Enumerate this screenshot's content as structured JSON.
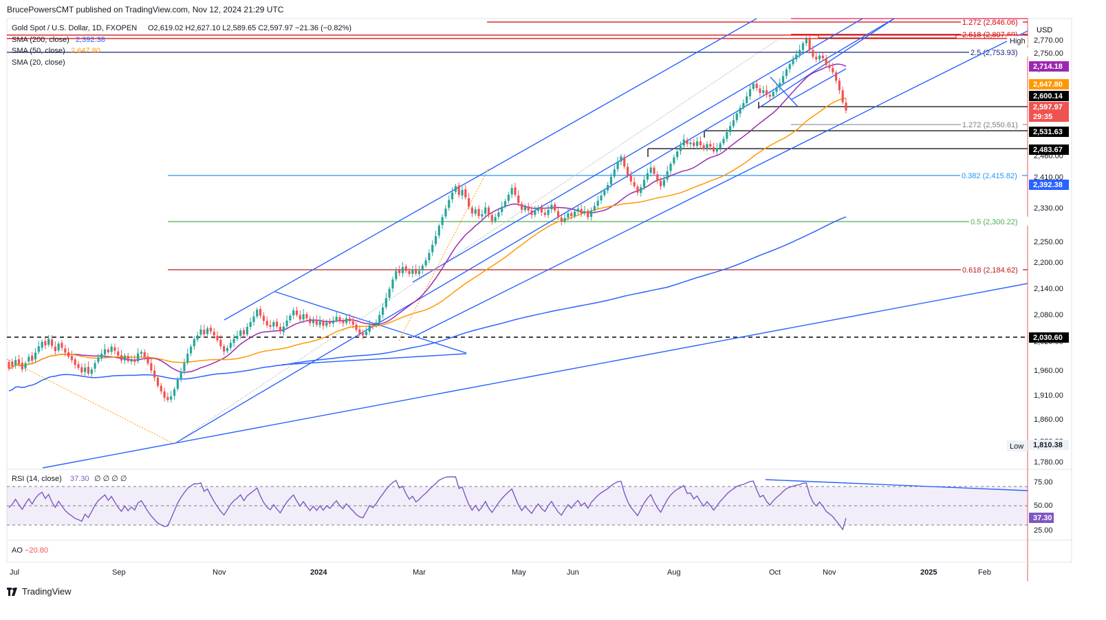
{
  "publisher_line": "BrucePowersCMT published on TradingView.com, Nov 12, 2024 21:29 UTC",
  "footer_brand": "TradingView",
  "legend": {
    "symbol": "Gold Spot / U.S. Dollar, 1D, FXOPEN",
    "ohlc": "O2,619.02 H2,627.10 L2,589.65 C2,597.97 −21.36 (−0.82%)",
    "sma200_label": "SMA (200, close)",
    "sma200_value": "2,392.38",
    "sma50_label": "SMA (50, close)",
    "sma50_value": "2,647.80",
    "sma20_label": "SMA (20, close)"
  },
  "currency": "USD",
  "colors": {
    "up": "#26a69a",
    "down": "#ef5350",
    "sma20": "#9c27b0",
    "sma50": "#ff9800",
    "sma200": "#2962ff",
    "trend": "#2962ff",
    "rsi": "#7e57c2",
    "fib382": "#2196f3",
    "fib50": "#4caf50",
    "fib618": "#b71c1c",
    "fib25": "#1a237e",
    "red": "#d50000"
  },
  "chart_data": {
    "type": "candlestick",
    "y_axis_ticks": [
      "2,770.00",
      "2,750.00",
      "2,690.00",
      "2,640.00",
      "2,570.00",
      "2,460.00",
      "2,410.00",
      "2,330.00",
      "2,250.00",
      "2,200.00",
      "2,140.00",
      "2,080.00",
      "2,020.00",
      "1,960.00",
      "1,910.00",
      "1,860.00",
      "1,820.00",
      "1,780.00"
    ],
    "x_axis_ticks": [
      "Jul",
      "Sep",
      "Nov",
      "2024",
      "Mar",
      "May",
      "Jun",
      "Aug",
      "Oct",
      "Nov",
      "2025",
      "Feb"
    ],
    "price_badges": [
      {
        "text": "2,714.18",
        "color": "#9c27b0"
      },
      {
        "text": "2,647.80",
        "color": "#ff9800"
      },
      {
        "text": "2,600.14",
        "color": "#000000"
      },
      {
        "text": "2,597.97",
        "color": "#ef5350"
      },
      {
        "text": "29:35",
        "color": "#ef5350"
      },
      {
        "text": "2,531.63",
        "color": "#000000"
      },
      {
        "text": "2,483.67",
        "color": "#000000"
      },
      {
        "text": "2,392.38",
        "color": "#2962ff"
      },
      {
        "text": "2,030.60",
        "color": "#000000"
      },
      {
        "text": "1,810.38",
        "color": "#eef2f7"
      }
    ],
    "high_label": "High",
    "low_label": "Low",
    "fib_levels": [
      {
        "label": "1.272 (2,846.06)",
        "color": "#d50000"
      },
      {
        "label": "2.618 (2,807.69)",
        "color": "#d50000"
      },
      {
        "label": "2.5 (2,753.93)",
        "color": "#1a237e"
      },
      {
        "label": "1.272 (2,550.61)",
        "color": "#787b86"
      },
      {
        "label": "0.382 (2,415.82)",
        "color": "#2196f3"
      },
      {
        "label": "0.5 (2,300.22)",
        "color": "#4caf50"
      },
      {
        "label": "0.618 (2,184.62)",
        "color": "#b71c1c"
      }
    ],
    "candles": [
      [
        1924,
        1906
      ],
      [
        1925,
        1912
      ],
      [
        1916,
        1929
      ],
      [
        1931,
        1918
      ],
      [
        1922,
        1904
      ],
      [
        1908,
        1921
      ],
      [
        1925,
        1938
      ],
      [
        1941,
        1927
      ],
      [
        1931,
        1949
      ],
      [
        1951,
        1966
      ],
      [
        1962,
        1978
      ],
      [
        1980,
        1968
      ],
      [
        1970,
        1986
      ],
      [
        1984,
        1967
      ],
      [
        1965,
        1953
      ],
      [
        1955,
        1973
      ],
      [
        1975,
        1962
      ],
      [
        1960,
        1949
      ],
      [
        1950,
        1938
      ],
      [
        1940,
        1929
      ],
      [
        1931,
        1916
      ],
      [
        1918,
        1908
      ],
      [
        1910,
        1896
      ],
      [
        1897,
        1909
      ],
      [
        1911,
        1893
      ],
      [
        1892,
        1904
      ],
      [
        1906,
        1921
      ],
      [
        1924,
        1936
      ],
      [
        1934,
        1946
      ],
      [
        1944,
        1958
      ],
      [
        1957,
        1950
      ],
      [
        1951,
        1965
      ],
      [
        1963,
        1954
      ],
      [
        1952,
        1941
      ],
      [
        1942,
        1928
      ],
      [
        1928,
        1941
      ],
      [
        1940,
        1926
      ],
      [
        1925,
        1931
      ],
      [
        1931,
        1924
      ],
      [
        1926,
        1947
      ],
      [
        1946,
        1951
      ],
      [
        1950,
        1938
      ],
      [
        1938,
        1920
      ],
      [
        1921,
        1901
      ],
      [
        1901,
        1882
      ],
      [
        1882,
        1860
      ],
      [
        1860,
        1845
      ],
      [
        1845,
        1828
      ],
      [
        1830,
        1822
      ],
      [
        1823,
        1832
      ],
      [
        1833,
        1851
      ],
      [
        1852,
        1876
      ],
      [
        1878,
        1898
      ],
      [
        1900,
        1921
      ],
      [
        1922,
        1946
      ],
      [
        1947,
        1965
      ],
      [
        1966,
        1985
      ],
      [
        1984,
        1995
      ],
      [
        1997,
        2011
      ],
      [
        2010,
        1998
      ],
      [
        1999,
        2014
      ],
      [
        2016,
        2006
      ],
      [
        2005,
        1995
      ],
      [
        1994,
        1982
      ],
      [
        1983,
        1966
      ],
      [
        1966,
        1952
      ],
      [
        1953,
        1961
      ],
      [
        1962,
        1975
      ],
      [
        1975,
        1986
      ],
      [
        1986,
        1994
      ],
      [
        1994,
        2008
      ],
      [
        2009,
        1998
      ],
      [
        1998,
        2018
      ],
      [
        2018,
        2031
      ],
      [
        2031,
        2046
      ],
      [
        2046,
        2064
      ],
      [
        2066,
        2048
      ],
      [
        2048,
        2034
      ],
      [
        2034,
        2022
      ],
      [
        2023,
        2018
      ],
      [
        2019,
        2031
      ],
      [
        2032,
        2019
      ],
      [
        2018,
        2006
      ],
      [
        2004,
        2019
      ],
      [
        2020,
        2035
      ],
      [
        2036,
        2048
      ],
      [
        2049,
        2062
      ],
      [
        2062,
        2050
      ],
      [
        2050,
        2038
      ],
      [
        2038,
        2052
      ],
      [
        2052,
        2041
      ],
      [
        2040,
        2028
      ],
      [
        2028,
        2036
      ],
      [
        2037,
        2024
      ],
      [
        2023,
        2033
      ],
      [
        2034,
        2021
      ],
      [
        2021,
        2030
      ],
      [
        2031,
        2026
      ],
      [
        2027,
        2035
      ],
      [
        2036,
        2045
      ],
      [
        2044,
        2034
      ],
      [
        2034,
        2028
      ],
      [
        2028,
        2041
      ],
      [
        2041,
        2033
      ],
      [
        2033,
        2024
      ],
      [
        2024,
        2010
      ],
      [
        2011,
        2000
      ],
      [
        2001,
        1995
      ],
      [
        1996,
        2005
      ],
      [
        2005,
        2022
      ],
      [
        2023,
        2021
      ],
      [
        2022,
        2030
      ],
      [
        2030,
        2050
      ],
      [
        2050,
        2070
      ],
      [
        2071,
        2095
      ],
      [
        2096,
        2120
      ],
      [
        2121,
        2145
      ],
      [
        2146,
        2168
      ],
      [
        2170,
        2162
      ],
      [
        2162,
        2178
      ],
      [
        2180,
        2168
      ],
      [
        2168,
        2160
      ],
      [
        2160,
        2172
      ],
      [
        2173,
        2161
      ],
      [
        2160,
        2168
      ],
      [
        2169,
        2182
      ],
      [
        2183,
        2196
      ],
      [
        2197,
        2216
      ],
      [
        2218,
        2238
      ],
      [
        2240,
        2261
      ],
      [
        2263,
        2289
      ],
      [
        2291,
        2312
      ],
      [
        2314,
        2335
      ],
      [
        2337,
        2358
      ],
      [
        2360,
        2378
      ],
      [
        2380,
        2395
      ],
      [
        2397,
        2372
      ],
      [
        2370,
        2385
      ],
      [
        2387,
        2365
      ],
      [
        2363,
        2340
      ],
      [
        2338,
        2322
      ],
      [
        2321,
        2333
      ],
      [
        2334,
        2315
      ],
      [
        2314,
        2320
      ],
      [
        2321,
        2338
      ],
      [
        2338,
        2318
      ],
      [
        2318,
        2302
      ],
      [
        2302,
        2312
      ],
      [
        2313,
        2325
      ],
      [
        2326,
        2340
      ],
      [
        2341,
        2355
      ],
      [
        2356,
        2372
      ],
      [
        2373,
        2390
      ],
      [
        2392,
        2372
      ],
      [
        2370,
        2350
      ],
      [
        2348,
        2332
      ],
      [
        2331,
        2340
      ],
      [
        2341,
        2330
      ],
      [
        2330,
        2318
      ],
      [
        2318,
        2328
      ],
      [
        2329,
        2338
      ],
      [
        2339,
        2325
      ],
      [
        2324,
        2318
      ],
      [
        2318,
        2332
      ],
      [
        2333,
        2345
      ],
      [
        2346,
        2330
      ],
      [
        2328,
        2312
      ],
      [
        2311,
        2300
      ],
      [
        2301,
        2310
      ],
      [
        2311,
        2322
      ],
      [
        2323,
        2315
      ],
      [
        2315,
        2327
      ],
      [
        2327,
        2335
      ],
      [
        2334,
        2322
      ],
      [
        2322,
        2328
      ],
      [
        2329,
        2312
      ],
      [
        2313,
        2330
      ],
      [
        2330,
        2342
      ],
      [
        2343,
        2356
      ],
      [
        2357,
        2370
      ],
      [
        2371,
        2383
      ],
      [
        2384,
        2398
      ],
      [
        2400,
        2420
      ],
      [
        2421,
        2440
      ],
      [
        2441,
        2460
      ],
      [
        2461,
        2475
      ],
      [
        2473,
        2448
      ],
      [
        2447,
        2425
      ],
      [
        2424,
        2408
      ],
      [
        2406,
        2395
      ],
      [
        2394,
        2378
      ],
      [
        2377,
        2392
      ],
      [
        2392,
        2412
      ],
      [
        2413,
        2430
      ],
      [
        2431,
        2445
      ],
      [
        2445,
        2428
      ],
      [
        2427,
        2410
      ],
      [
        2409,
        2395
      ],
      [
        2396,
        2412
      ],
      [
        2413,
        2435
      ],
      [
        2436,
        2455
      ],
      [
        2456,
        2472
      ],
      [
        2473,
        2488
      ],
      [
        2489,
        2503
      ],
      [
        2504,
        2520
      ],
      [
        2519,
        2508
      ],
      [
        2508,
        2512
      ],
      [
        2512,
        2503
      ],
      [
        2503,
        2515
      ],
      [
        2515,
        2505
      ],
      [
        2505,
        2495
      ],
      [
        2496,
        2508
      ],
      [
        2508,
        2501
      ],
      [
        2500,
        2488
      ],
      [
        2488,
        2497
      ],
      [
        2497,
        2510
      ],
      [
        2510,
        2522
      ],
      [
        2522,
        2540
      ],
      [
        2540,
        2556
      ],
      [
        2556,
        2572
      ],
      [
        2572,
        2590
      ],
      [
        2590,
        2605
      ],
      [
        2605,
        2618
      ],
      [
        2618,
        2636
      ],
      [
        2636,
        2655
      ],
      [
        2656,
        2670
      ],
      [
        2670,
        2658
      ],
      [
        2657,
        2645
      ],
      [
        2645,
        2652
      ],
      [
        2652,
        2640
      ],
      [
        2640,
        2635
      ],
      [
        2636,
        2648
      ],
      [
        2648,
        2660
      ],
      [
        2660,
        2672
      ],
      [
        2672,
        2690
      ],
      [
        2690,
        2708
      ],
      [
        2709,
        2722
      ],
      [
        2722,
        2735
      ],
      [
        2735,
        2748
      ],
      [
        2748,
        2760
      ],
      [
        2760,
        2778
      ],
      [
        2778,
        2790
      ],
      [
        2790,
        2760
      ],
      [
        2760,
        2742
      ],
      [
        2742,
        2735
      ],
      [
        2735,
        2745
      ],
      [
        2745,
        2738
      ],
      [
        2738,
        2720
      ],
      [
        2720,
        2712
      ],
      [
        2712,
        2700
      ],
      [
        2700,
        2678
      ],
      [
        2678,
        2652
      ],
      [
        2652,
        2620
      ],
      [
        2619,
        2598
      ]
    ],
    "rsi": {
      "label": "RSI (14, close)",
      "value": "37.30",
      "bands": [
        70,
        50,
        30
      ],
      "ticks": [
        "75.00",
        "50.00",
        "25.00"
      ],
      "badge": "37.30",
      "placeholders": "∅ ∅ ∅ ∅"
    },
    "ao": {
      "label": "AO",
      "value": "−20.80"
    }
  }
}
